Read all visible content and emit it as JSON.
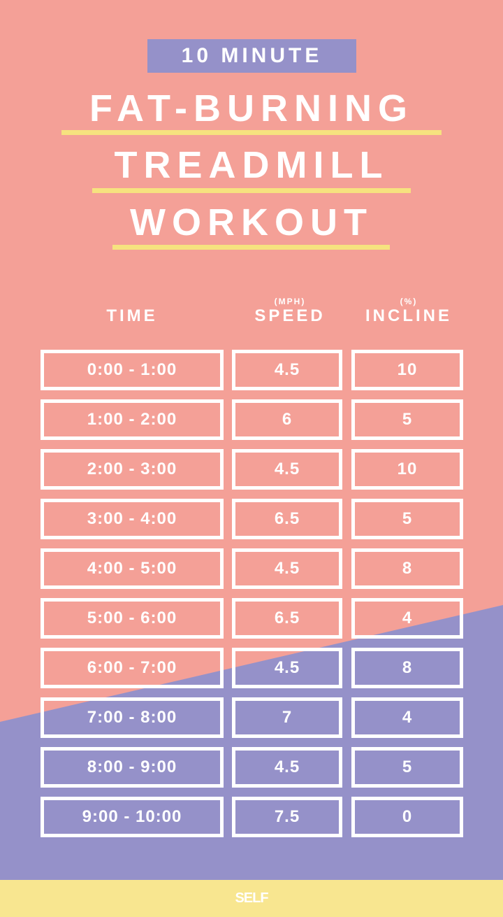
{
  "colors": {
    "pink": "#f4a097",
    "purple": "#9591c9",
    "yellow": "#f8e690",
    "white": "#ffffff"
  },
  "title": {
    "badge": "10 MINUTE",
    "lines": [
      "FAT-BURNING",
      "TREADMILL",
      "WORKOUT"
    ]
  },
  "table": {
    "headers": [
      {
        "label": "TIME",
        "unit": ""
      },
      {
        "label": "SPEED",
        "unit": "(MPH)"
      },
      {
        "label": "INCLINE",
        "unit": "(%)"
      }
    ],
    "rows": [
      {
        "time": "0:00 - 1:00",
        "speed": "4.5",
        "incline": "10"
      },
      {
        "time": "1:00 - 2:00",
        "speed": "6",
        "incline": "5"
      },
      {
        "time": "2:00 - 3:00",
        "speed": "4.5",
        "incline": "10"
      },
      {
        "time": "3:00 - 4:00",
        "speed": "6.5",
        "incline": "5"
      },
      {
        "time": "4:00 - 5:00",
        "speed": "4.5",
        "incline": "8"
      },
      {
        "time": "5:00 - 6:00",
        "speed": "6.5",
        "incline": "4"
      },
      {
        "time": "6:00 - 7:00",
        "speed": "4.5",
        "incline": "8"
      },
      {
        "time": "7:00 - 8:00",
        "speed": "7",
        "incline": "4"
      },
      {
        "time": "8:00 - 9:00",
        "speed": "4.5",
        "incline": "5"
      },
      {
        "time": "9:00 - 10:00",
        "speed": "7.5",
        "incline": "0"
      }
    ]
  },
  "footer": {
    "logo": "SELF"
  }
}
